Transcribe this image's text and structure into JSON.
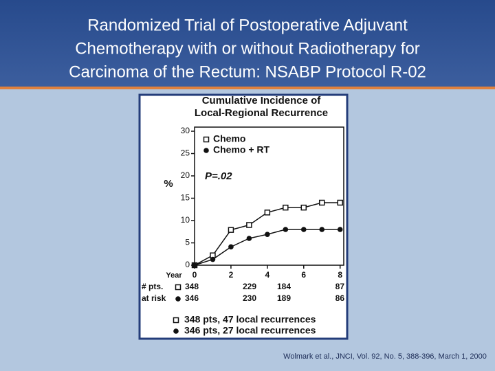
{
  "header": {
    "title": [
      "Randomized Trial of Postoperative Adjuvant",
      "Chemotherapy with or without Radiotherapy for",
      "Carcinoma of the Rectum: NSABP Protocol R-02"
    ]
  },
  "citation": "Wolmark et al., JNCI, Vol. 92, No. 5, 388-396, March 1, 2000",
  "chart_data": {
    "type": "line",
    "title": [
      "Cumulative Incidence of",
      "Local-Regional Recurrence"
    ],
    "y_label": "%",
    "x_label": "Year",
    "annotation": "P=.02",
    "x": [
      0,
      1,
      2,
      3,
      4,
      5,
      6,
      7,
      8
    ],
    "series": [
      {
        "name": "Chemo",
        "color": "#111111",
        "marker": "square",
        "values": [
          0,
          2.2,
          7.9,
          9,
          11.8,
          12.9,
          12.9,
          14,
          14
        ]
      },
      {
        "name": "Chemo + RT",
        "color": "#111111",
        "marker": "circle",
        "values": [
          0,
          1.3,
          4.1,
          6,
          6.9,
          8,
          8,
          8,
          8
        ]
      }
    ],
    "xlim": [
      0,
      8.2
    ],
    "ylim": [
      0,
      30
    ],
    "xticks": [
      0,
      2,
      4,
      6,
      8
    ],
    "yticks": [
      0,
      5,
      10,
      15,
      20,
      25,
      30
    ],
    "grid": false,
    "at_risk": {
      "labels": [
        "# pts.",
        "at risk"
      ],
      "rows": [
        [
          348,
          229,
          184,
          87
        ],
        [
          346,
          230,
          189,
          86
        ]
      ]
    },
    "summary": [
      "348 pts, 47 local recurrences",
      "346 pts, 27 local recurrences"
    ]
  }
}
